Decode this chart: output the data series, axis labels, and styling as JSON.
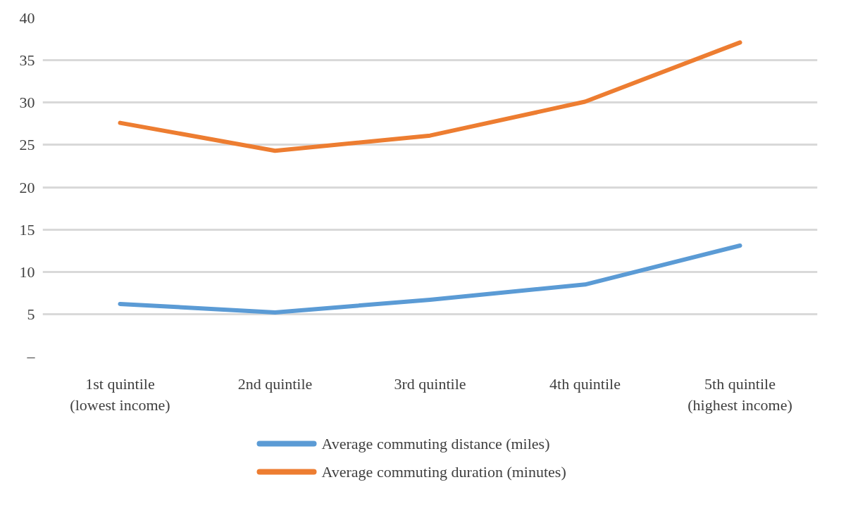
{
  "chart_data": {
    "type": "line",
    "categories": [
      "1st quintile\n(lowest income)",
      "2nd quintile",
      "3rd quintile",
      "4th quintile",
      "5th quintile\n(highest income)"
    ],
    "series": [
      {
        "name": "Average commuting distance (miles)",
        "color": "#5b9bd5",
        "values": [
          6.2,
          5.2,
          6.7,
          8.5,
          13.1
        ]
      },
      {
        "name": "Average commuting duration (minutes)",
        "color": "#ed7d31",
        "values": [
          27.6,
          24.3,
          26.1,
          30.1,
          37.1
        ]
      }
    ],
    "ylim": [
      0,
      40
    ],
    "yticks": [
      {
        "value": 0,
        "label": "–"
      },
      5,
      10,
      15,
      20,
      25,
      30,
      35,
      40
    ],
    "grid": "y",
    "legend": "bottom",
    "marker": "none",
    "line_style": "solid"
  }
}
